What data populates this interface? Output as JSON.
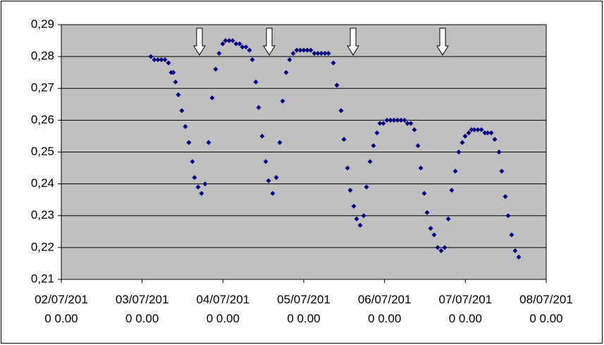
{
  "chart_data": {
    "type": "scatter",
    "color": "#000080",
    "plot_color": "#c0c0c0",
    "grid": true,
    "x": [
      1.108,
      1.151,
      1.195,
      1.238,
      1.282,
      1.326,
      1.36,
      1.387,
      1.413,
      1.448,
      1.491,
      1.535,
      1.578,
      1.622,
      1.648,
      1.692,
      1.735,
      1.779,
      1.823,
      1.866,
      1.91,
      1.953,
      1.997,
      2.032,
      2.076,
      2.119,
      2.163,
      2.206,
      2.241,
      2.285,
      2.328,
      2.363,
      2.407,
      2.442,
      2.485,
      2.529,
      2.564,
      2.616,
      2.66,
      2.703,
      2.738,
      2.782,
      2.825,
      2.869,
      2.913,
      2.956,
      3.0,
      3.044,
      3.087,
      3.131,
      3.174,
      3.218,
      3.262,
      3.305,
      3.366,
      3.41,
      3.462,
      3.497,
      3.541,
      3.575,
      3.619,
      3.654,
      3.698,
      3.741,
      3.776,
      3.82,
      3.863,
      3.907,
      3.942,
      3.985,
      4.029,
      4.073,
      4.116,
      4.16,
      4.203,
      4.247,
      4.282,
      4.325,
      4.369,
      4.413,
      4.448,
      4.491,
      4.526,
      4.57,
      4.613,
      4.657,
      4.7,
      4.744,
      4.788,
      4.831,
      4.875,
      4.918,
      4.962,
      4.997,
      5.041,
      5.075,
      5.11,
      5.154,
      5.198,
      5.241,
      5.276,
      5.32,
      5.363,
      5.416,
      5.45,
      5.494,
      5.529,
      5.573,
      5.616,
      5.66
    ],
    "values": [
      0.28,
      0.279,
      0.279,
      0.279,
      0.279,
      0.278,
      0.275,
      0.275,
      0.272,
      0.268,
      0.263,
      0.258,
      0.253,
      0.247,
      0.242,
      0.239,
      0.237,
      0.24,
      0.253,
      0.267,
      0.276,
      0.281,
      0.284,
      0.285,
      0.285,
      0.285,
      0.284,
      0.284,
      0.283,
      0.283,
      0.282,
      0.279,
      0.272,
      0.264,
      0.255,
      0.247,
      0.241,
      0.237,
      0.242,
      0.253,
      0.266,
      0.275,
      0.279,
      0.281,
      0.282,
      0.282,
      0.282,
      0.282,
      0.282,
      0.281,
      0.281,
      0.281,
      0.281,
      0.281,
      0.278,
      0.271,
      0.263,
      0.254,
      0.245,
      0.238,
      0.233,
      0.229,
      0.227,
      0.23,
      0.239,
      0.247,
      0.252,
      0.256,
      0.259,
      0.259,
      0.26,
      0.26,
      0.26,
      0.26,
      0.26,
      0.26,
      0.259,
      0.259,
      0.257,
      0.252,
      0.245,
      0.237,
      0.231,
      0.226,
      0.224,
      0.22,
      0.219,
      0.22,
      0.229,
      0.238,
      0.244,
      0.25,
      0.253,
      0.255,
      0.256,
      0.257,
      0.257,
      0.257,
      0.257,
      0.256,
      0.256,
      0.256,
      0.254,
      0.25,
      0.244,
      0.236,
      0.23,
      0.224,
      0.219,
      0.217
    ],
    "xlim": [
      0,
      6
    ],
    "xticks": [
      {
        "value": 0,
        "label": "02/07/2010 0.00"
      },
      {
        "value": 1,
        "label": "03/07/2010 0.00"
      },
      {
        "value": 2,
        "label": "04/07/2010 0.00"
      },
      {
        "value": 3,
        "label": "05/07/2010 0.00"
      },
      {
        "value": 4,
        "label": "06/07/2010 0.00"
      },
      {
        "value": 5,
        "label": "07/07/2010 0.00"
      },
      {
        "value": 6,
        "label": "08/07/2010 0.00"
      }
    ],
    "ylim": [
      0.21,
      0.29
    ],
    "yticks": [
      {
        "value": 0.21,
        "label": "0,21"
      },
      {
        "value": 0.22,
        "label": "0,22"
      },
      {
        "value": 0.23,
        "label": "0,23"
      },
      {
        "value": 0.24,
        "label": "0,24"
      },
      {
        "value": 0.25,
        "label": "0,25"
      },
      {
        "value": 0.26,
        "label": "0,26"
      },
      {
        "value": 0.27,
        "label": "0,27"
      },
      {
        "value": 0.28,
        "label": "0,28"
      },
      {
        "value": 0.29,
        "label": "0,29"
      }
    ]
  }
}
